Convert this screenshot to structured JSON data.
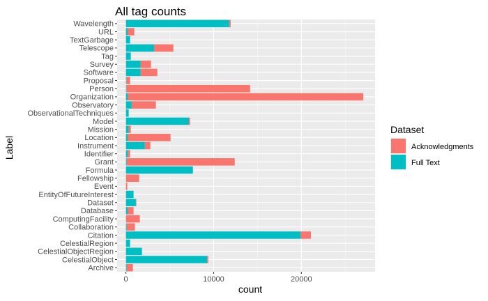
{
  "chart_data": {
    "type": "bar",
    "orientation": "horizontal",
    "stacked": true,
    "title": "All tag counts",
    "xlabel": "count",
    "ylabel": "Label",
    "xlim": [
      -1000,
      28400
    ],
    "xticks": [
      0,
      10000,
      20000
    ],
    "xtick_labels": [
      "0",
      "10000",
      "20000"
    ],
    "grid": true,
    "legend": {
      "title": "Dataset",
      "placement": "right",
      "entries": [
        "Acknowledgments",
        "Full Text"
      ]
    },
    "colors": {
      "Acknowledgments": "#F8766D",
      "Full Text": "#00BFC4"
    },
    "categories": [
      "Wavelength",
      "URL",
      "TextGarbage",
      "Telescope",
      "Tag",
      "Survey",
      "Software",
      "Proposal",
      "Person",
      "Organization",
      "Observatory",
      "ObservationalTechniques",
      "Model",
      "Mission",
      "Location",
      "Instrument",
      "Identifier",
      "Grant",
      "Formula",
      "Fellowship",
      "Event",
      "EntityOfFutureInterest",
      "Dataset",
      "Database",
      "ComputingFacility",
      "Collaboration",
      "Citation",
      "CelestialRegion",
      "CelestialObjectRegion",
      "CelestialObject",
      "Archive"
    ],
    "series": [
      {
        "name": "Full Text",
        "values": [
          11780,
          190,
          480,
          3210,
          560,
          1670,
          1670,
          50,
          50,
          190,
          660,
          320,
          7190,
          320,
          190,
          2150,
          210,
          80,
          7640,
          0,
          0,
          875,
          1140,
          190,
          0,
          80,
          19920,
          480,
          1830,
          9260,
          80
        ]
      },
      {
        "name": "Acknowledgments",
        "values": [
          160,
          765,
          0,
          2200,
          0,
          1190,
          1910,
          430,
          14110,
          26870,
          2760,
          0,
          130,
          240,
          4900,
          640,
          270,
          12330,
          0,
          1510,
          160,
          0,
          50,
          685,
          1590,
          950,
          1170,
          0,
          0,
          130,
          720
        ]
      }
    ]
  }
}
